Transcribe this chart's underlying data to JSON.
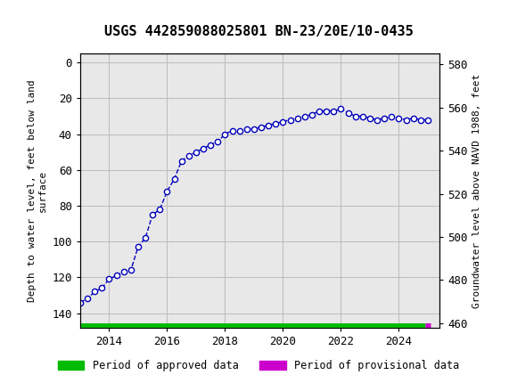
{
  "title": "USGS 442859088025801 BN-23/20E/10-0435",
  "ylabel_left": "Depth to water level, feet below land\nsurface",
  "ylabel_right": "Groundwater level above NAVD 1988, feet",
  "ylim_left": [
    148,
    -5
  ],
  "ylim_right": [
    458,
    585
  ],
  "yticks_left": [
    0,
    20,
    40,
    60,
    80,
    100,
    120,
    140
  ],
  "yticks_right": [
    460,
    480,
    500,
    520,
    540,
    560,
    580
  ],
  "header_color": "#1a7040",
  "line_color": "#0000bb",
  "line_style": "--",
  "marker_style": "o",
  "marker_facecolor": "white",
  "marker_edgecolor": "#0000bb",
  "marker_size": 4.5,
  "marker_linewidth": 1.0,
  "approved_color": "#00bb00",
  "provisional_color": "#cc00cc",
  "legend_approved": "Period of approved data",
  "legend_provisional": "Period of provisional data",
  "grid_color": "#bbbbbb",
  "background_color": "white",
  "plot_bg_color": "#e8e8e8",
  "years": [
    2013.0,
    2013.25,
    2013.5,
    2013.75,
    2014.0,
    2014.25,
    2014.5,
    2014.75,
    2015.0,
    2015.25,
    2015.5,
    2015.75,
    2016.0,
    2016.25,
    2016.5,
    2016.75,
    2017.0,
    2017.25,
    2017.5,
    2017.75,
    2018.0,
    2018.25,
    2018.5,
    2018.75,
    2019.0,
    2019.25,
    2019.5,
    2019.75,
    2020.0,
    2020.25,
    2020.5,
    2020.75,
    2021.0,
    2021.25,
    2021.5,
    2021.75,
    2022.0,
    2022.25,
    2022.5,
    2022.75,
    2023.0,
    2023.25,
    2023.5,
    2023.75,
    2024.0,
    2024.25,
    2024.5,
    2024.75,
    2025.0
  ],
  "depth_values": [
    134,
    132,
    128,
    126,
    121,
    119,
    117,
    116,
    103,
    98,
    85,
    82,
    72,
    65,
    55,
    52,
    50,
    48,
    46,
    44,
    40,
    38,
    38,
    37,
    37,
    36,
    35,
    34,
    33,
    32,
    31,
    30,
    29,
    27,
    27,
    27,
    26,
    28,
    30,
    30,
    31,
    32,
    31,
    30,
    31,
    32,
    31,
    32,
    32
  ],
  "xlim": [
    2013.0,
    2025.4
  ],
  "xticks": [
    2014,
    2016,
    2018,
    2020,
    2022,
    2024
  ],
  "approved_xstart": 2013.0,
  "approved_xend": 2024.92,
  "provisional_xstart": 2024.92,
  "provisional_xend": 2025.1,
  "bar_y": 147,
  "bar_linewidth": 5
}
